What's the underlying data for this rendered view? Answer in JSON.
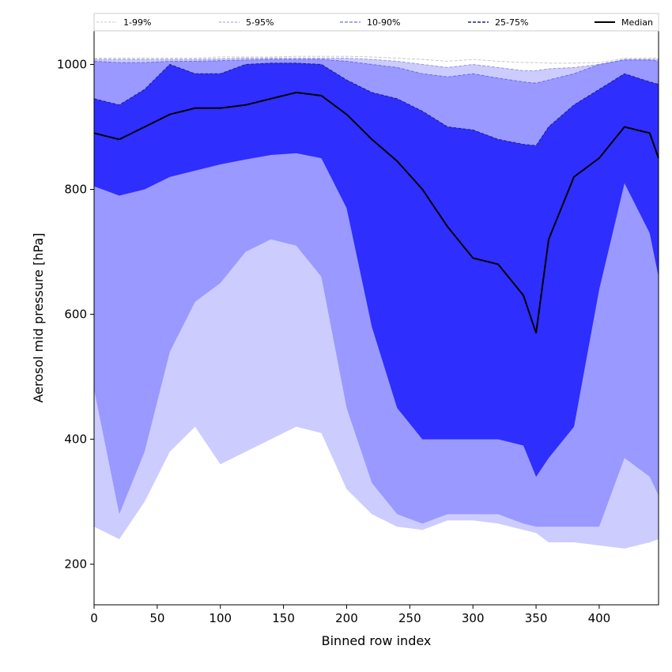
{
  "chart_data": {
    "type": "area",
    "title": "",
    "xlabel": "Binned row index",
    "ylabel": "Aerosol mid pressure [hPa]",
    "xlim": [
      0,
      447
    ],
    "ylim": [
      135,
      1055
    ],
    "y_inverted": false,
    "grid": false,
    "x_ticks": [
      0,
      50,
      100,
      150,
      200,
      250,
      300,
      350,
      400
    ],
    "y_ticks": [
      200,
      400,
      600,
      800,
      1000
    ],
    "legend": {
      "placement": "top, spanning full width",
      "ncol": 5
    },
    "x": [
      0,
      20,
      40,
      60,
      80,
      100,
      120,
      140,
      160,
      180,
      200,
      220,
      240,
      260,
      280,
      300,
      320,
      340,
      350,
      360,
      380,
      400,
      420,
      440,
      447
    ],
    "bands": [
      {
        "name": "1-99%",
        "lower": [
          175,
          175,
          175,
          185,
          200,
          205,
          215,
          235,
          250,
          250,
          240,
          235,
          225,
          220,
          225,
          230,
          220,
          205,
          190,
          178,
          178,
          178,
          178,
          178,
          178
        ],
        "upper": [
          1010,
          1010,
          1010,
          1010,
          1010,
          1012,
          1012,
          1012,
          1013,
          1013,
          1013,
          1012,
          1010,
          1008,
          1005,
          1008,
          1005,
          1003,
          1003,
          1002,
          1002,
          1003,
          1010,
          1010,
          1010
        ]
      },
      {
        "name": "5-95%",
        "lower": [
          260,
          240,
          300,
          380,
          420,
          360,
          380,
          400,
          420,
          410,
          320,
          280,
          260,
          255,
          270,
          270,
          265,
          255,
          250,
          235,
          235,
          230,
          225,
          235,
          240
        ],
        "upper": [
          1008,
          1008,
          1008,
          1008,
          1008,
          1009,
          1010,
          1010,
          1010,
          1010,
          1010,
          1008,
          1005,
          1000,
          995,
          1000,
          995,
          990,
          990,
          993,
          995,
          1000,
          1008,
          1008,
          1008
        ]
      },
      {
        "name": "10-90%",
        "lower": [
          480,
          280,
          380,
          540,
          620,
          650,
          700,
          720,
          710,
          660,
          450,
          330,
          280,
          265,
          280,
          280,
          280,
          265,
          260,
          260,
          260,
          260,
          370,
          340,
          310
        ],
        "upper": [
          1005,
          1003,
          1003,
          1005,
          1005,
          1006,
          1007,
          1008,
          1008,
          1008,
          1005,
          1000,
          995,
          985,
          980,
          985,
          978,
          972,
          970,
          975,
          985,
          1000,
          1007,
          1007,
          1005
        ]
      },
      {
        "name": "25-75%",
        "lower": [
          805,
          790,
          800,
          820,
          830,
          840,
          848,
          855,
          858,
          850,
          770,
          580,
          450,
          400,
          400,
          400,
          400,
          390,
          340,
          370,
          420,
          640,
          810,
          730,
          660
        ],
        "upper": [
          945,
          935,
          960,
          1000,
          985,
          985,
          1000,
          1002,
          1002,
          1000,
          975,
          955,
          945,
          925,
          900,
          895,
          880,
          872,
          870,
          900,
          935,
          960,
          985,
          972,
          968
        ]
      }
    ],
    "median": {
      "name": "Median",
      "y": [
        890,
        880,
        900,
        920,
        930,
        930,
        935,
        945,
        955,
        950,
        920,
        880,
        845,
        800,
        740,
        690,
        680,
        630,
        570,
        720,
        820,
        850,
        900,
        890,
        850
      ]
    },
    "legend_entries": [
      "1-99%",
      "5-95%",
      "10-90%",
      "25-75%",
      "Median"
    ],
    "colors": {
      "band_1_99": "#ffffff",
      "band_5_95": "#ccccff",
      "band_10_90": "#9999ff",
      "band_25_75": "#5555ff",
      "band_core": "#2e2eff",
      "median": "#000000",
      "edge_1_99": "#c8c8c8",
      "edge_5_95": "#9a9ad8",
      "edge_10_90": "#6d6df0",
      "edge_25_75": "#1e1e90"
    }
  }
}
